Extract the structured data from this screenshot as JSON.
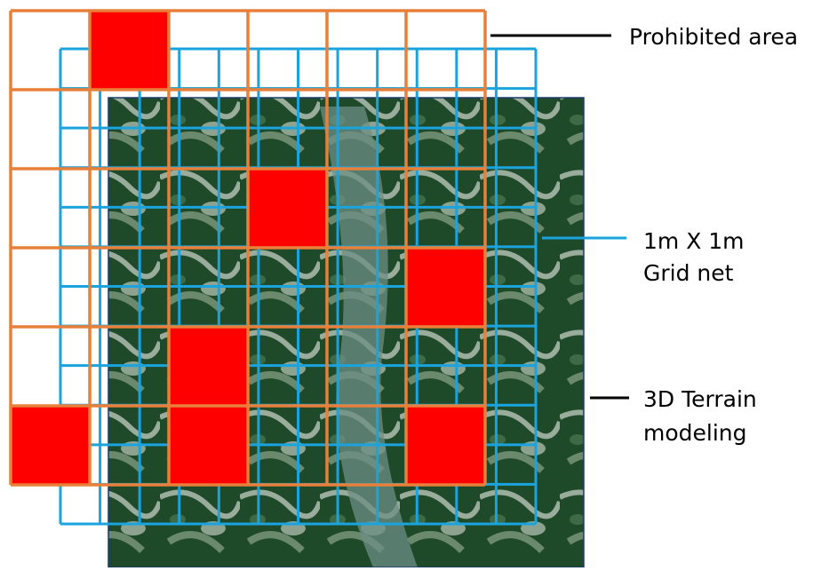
{
  "labels": {
    "prohibited_area": "Prohibited area",
    "grid_net": [
      "1m X 1m",
      "Grid net"
    ],
    "terrain": [
      "3D Terrain",
      "modeling"
    ]
  }
}
